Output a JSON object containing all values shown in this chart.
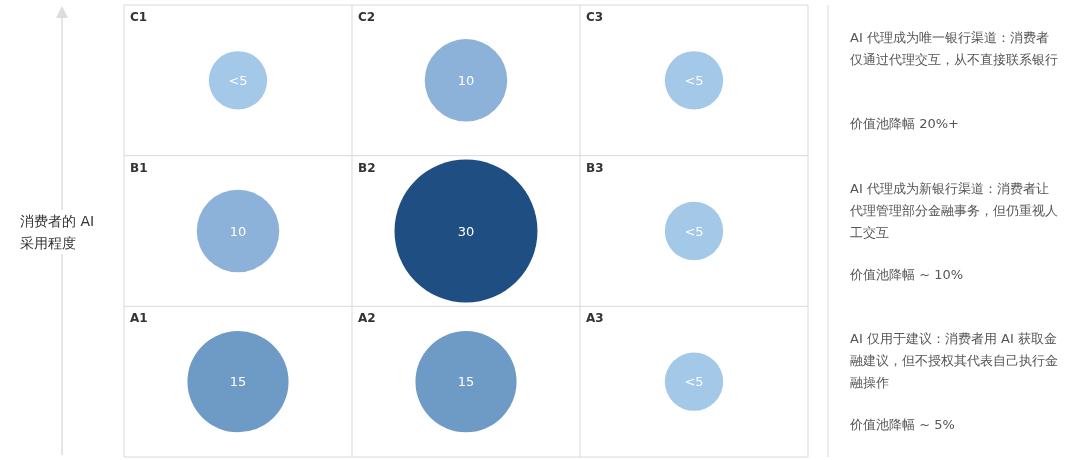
{
  "chart_data": {
    "type": "other",
    "ylabel": "消费者的 AI 采用程度",
    "categories": [
      "C1",
      "C2",
      "C3",
      "B1",
      "B2",
      "B3",
      "A1",
      "A2",
      "A3"
    ],
    "values": [
      5,
      10,
      5,
      10,
      30,
      5,
      15,
      15,
      5
    ],
    "value_labels": [
      "<5",
      "10",
      "<5",
      "10",
      "30",
      "<5",
      "15",
      "15",
      "<5"
    ],
    "colors": [
      "#a4c8e8",
      "#8cb2d9",
      "#a4c8e8",
      "#8cb2d9",
      "#1f4f82",
      "#a4c8e8",
      "#6e9bc6",
      "#6e9bc6",
      "#a4c8e8"
    ],
    "annotations": [
      "AI 代理成为唯一银行渠道：消费者仅通过代理交互，从不直接联系银行",
      "价值池降幅 20%+",
      "AI 代理成为新银行渠道：消费者让代理管理部分金融事务，但仍重视人工交互",
      "价值池降幅 ~ 10%",
      "AI 仅用于建议：消费者用 AI 获取金融建议，但不授权其代表自己执行金融操作",
      "价值池降幅 ~ 5%"
    ]
  }
}
